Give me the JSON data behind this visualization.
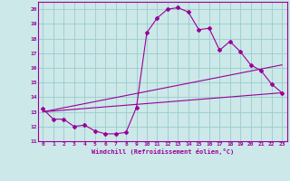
{
  "xlabel": "Windchill (Refroidissement éolien,°C)",
  "bg_color": "#cce8e8",
  "grid_color": "#99cccc",
  "line_color": "#990099",
  "xlim": [
    -0.5,
    23.5
  ],
  "ylim": [
    11,
    20.5
  ],
  "yticks": [
    11,
    12,
    13,
    14,
    15,
    16,
    17,
    18,
    19,
    20
  ],
  "xticks": [
    0,
    1,
    2,
    3,
    4,
    5,
    6,
    7,
    8,
    9,
    10,
    11,
    12,
    13,
    14,
    15,
    16,
    17,
    18,
    19,
    20,
    21,
    22,
    23
  ],
  "curve1_x": [
    0,
    1,
    2,
    3,
    4,
    5,
    6,
    7,
    8,
    9,
    10,
    11,
    12,
    13,
    14,
    15,
    16,
    17,
    18,
    19,
    20,
    21,
    22,
    23
  ],
  "curve1_y": [
    13.2,
    12.5,
    12.5,
    12.0,
    12.1,
    11.7,
    11.5,
    11.5,
    11.6,
    13.3,
    18.4,
    19.4,
    20.0,
    20.1,
    19.8,
    18.6,
    18.7,
    17.2,
    17.8,
    17.1,
    16.2,
    15.8,
    14.9,
    14.3
  ],
  "curve2_x": [
    0,
    23
  ],
  "curve2_y": [
    13.0,
    16.2
  ],
  "curve3_x": [
    0,
    23
  ],
  "curve3_y": [
    13.0,
    14.3
  ]
}
